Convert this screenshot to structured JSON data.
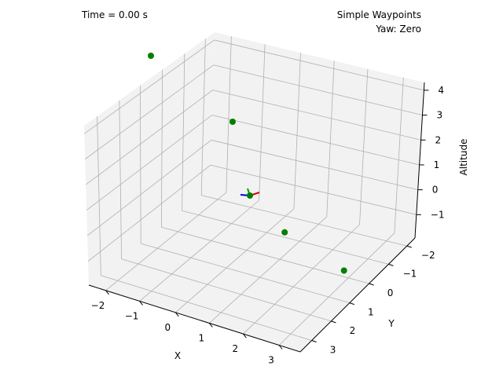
{
  "time_label": "Time = 0.00 s",
  "chart_data": {
    "type": "scatter",
    "title": "Simple Waypoints",
    "subtitle": "Yaw: Zero",
    "xlabel": "X",
    "ylabel": "Y",
    "zlabel": "Altitude",
    "x_ticks": [
      "−2",
      "−1",
      "0",
      "1",
      "2",
      "3"
    ],
    "y_ticks": [
      "−2",
      "−1",
      "0",
      "1",
      "2",
      "3"
    ],
    "z_ticks": [
      "−1",
      "0",
      "1",
      "2",
      "3",
      "4"
    ],
    "grid": true,
    "waypoints": [
      {
        "x": -2.0,
        "y": 2.0,
        "z": 4.0
      },
      {
        "x": 1.9,
        "y": -1.9,
        "z": -1.5
      },
      {
        "x": -2.0,
        "y": -2.0,
        "z": 3.0
      },
      {
        "x": 2.6,
        "y": 2.0,
        "z": -1.3
      },
      {
        "x": 0.0,
        "y": 0.0,
        "z": 0.0
      }
    ],
    "vehicle": {
      "x": 0.0,
      "y": 0.0,
      "z": 0.0
    },
    "colors": {
      "waypoint": "#008000",
      "body_x": "#e00000",
      "body_y": "#0000dd",
      "body_z": "#00a000",
      "pane": "#f2f2f2",
      "grid": "#b0b0b0",
      "axis": "#000000"
    }
  }
}
